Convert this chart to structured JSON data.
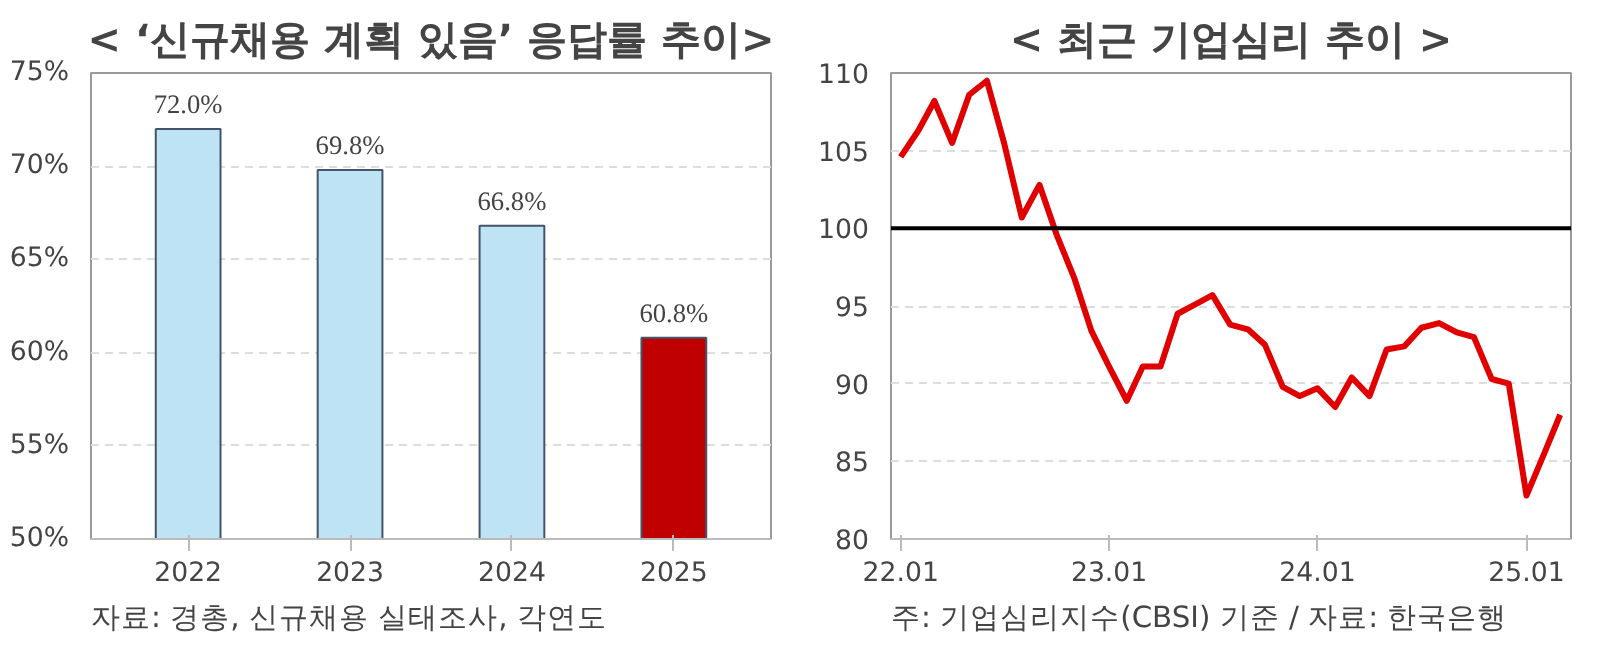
{
  "chart_data": [
    {
      "type": "bar",
      "title": "< ‘신규채용 계획 있음’ 응답률 추이>",
      "categories": [
        "2022",
        "2023",
        "2024",
        "2025"
      ],
      "values": [
        72.0,
        69.8,
        66.8,
        60.8
      ],
      "colors": [
        "#bde3f5",
        "#bde3f5",
        "#bde3f5",
        "#c00000"
      ],
      "value_labels": [
        "72.0%",
        "69.8%",
        "66.8%",
        "60.8%"
      ],
      "ylim": [
        50,
        75
      ],
      "yticks": [
        {
          "value": 50,
          "label": "50%"
        },
        {
          "value": 55,
          "label": "55%"
        },
        {
          "value": 60,
          "label": "60%"
        },
        {
          "value": 65,
          "label": "65%"
        },
        {
          "value": 70,
          "label": "70%"
        },
        {
          "value": 75,
          "label": "75%"
        }
      ],
      "grid": "y",
      "annotations": [
        "자료: 경총, 신규채용 실태조사, 각연도"
      ]
    },
    {
      "type": "line",
      "title": "< 최근 기업심리 추이 >",
      "x": [
        "2022-01",
        "2022-02",
        "2022-03",
        "2022-04",
        "2022-05",
        "2022-06",
        "2022-07",
        "2022-08",
        "2022-09",
        "2022-10",
        "2022-11",
        "2022-12",
        "2023-01",
        "2023-02",
        "2023-03",
        "2023-04",
        "2023-05",
        "2023-06",
        "2023-07",
        "2023-08",
        "2023-09",
        "2023-10",
        "2023-11",
        "2023-12",
        "2024-01",
        "2024-02",
        "2024-03",
        "2024-04",
        "2024-05",
        "2024-06",
        "2024-07",
        "2024-08",
        "2024-09",
        "2024-10",
        "2024-11",
        "2024-12",
        "2025-01",
        "2025-02",
        "2025-03"
      ],
      "series": [
        {
          "color": "#e00000",
          "values": [
            104.6,
            106.3,
            108.2,
            105.5,
            108.6,
            109.5,
            105.5,
            100.7,
            102.8,
            99.6,
            96.8,
            93.4,
            91.1,
            88.9,
            91.1,
            91.1,
            94.5,
            95.1,
            95.7,
            93.8,
            93.5,
            92.5,
            89.8,
            89.2,
            89.7,
            88.5,
            90.4,
            89.2,
            92.2,
            92.4,
            93.6,
            93.9,
            93.3,
            93.0,
            90.3,
            90.0,
            82.8,
            85.5,
            88.0
          ]
        }
      ],
      "xlim": [
        "2021-12-15",
        "2025-03-20"
      ],
      "xticks": [
        {
          "value": "2022-01",
          "label": "22.01"
        },
        {
          "value": "2023-01",
          "label": "23.01"
        },
        {
          "value": "2024-01",
          "label": "24.01"
        },
        {
          "value": "2025-01",
          "label": "25.01"
        }
      ],
      "ylim": [
        80,
        110
      ],
      "yticks": [
        80,
        85,
        90,
        95,
        100,
        105,
        110
      ],
      "grid": "y",
      "marker": "none",
      "line_style": "solid",
      "ref_lines": [
        {
          "axis": "y",
          "value": 100,
          "label": null,
          "color": "#000000"
        }
      ],
      "annotations": [
        "주: 기업심리지수(CBSI) 기준 / 자료: 한국은행"
      ]
    }
  ]
}
